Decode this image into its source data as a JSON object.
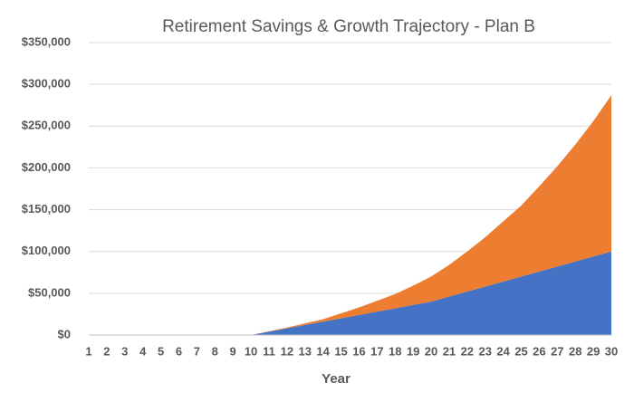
{
  "chart_data": {
    "type": "stacked-area",
    "title": "Retirement Savings & Growth Trajectory - Plan B",
    "x_label": "Year",
    "x": [
      1,
      2,
      3,
      4,
      5,
      6,
      7,
      8,
      9,
      10,
      11,
      12,
      13,
      14,
      15,
      16,
      17,
      18,
      19,
      20,
      21,
      22,
      23,
      24,
      25,
      26,
      27,
      28,
      29,
      30
    ],
    "xlim": [
      1,
      30
    ],
    "series": [
      {
        "color": "#4472c4",
        "values": [
          0,
          0,
          0,
          0,
          0,
          0,
          0,
          0,
          0,
          0,
          4000,
          8000,
          12000,
          16000,
          20000,
          24000,
          28000,
          32000,
          36000,
          40000,
          46000,
          52000,
          58000,
          64000,
          70000,
          76000,
          82000,
          88000,
          94000,
          100000
        ]
      },
      {
        "color": "#ed7d31",
        "values": [
          0,
          0,
          0,
          0,
          0,
          0,
          0,
          0,
          0,
          0,
          500,
          1000,
          2000,
          3000,
          6000,
          9000,
          13000,
          17000,
          23000,
          30000,
          38000,
          48000,
          59000,
          72000,
          85000,
          102000,
          120000,
          140000,
          162000,
          187000
        ]
      }
    ],
    "ylim": [
      0,
      350000
    ],
    "yticks": [
      {
        "value": 0,
        "label": "$0"
      },
      {
        "value": 50000,
        "label": "$50,000"
      },
      {
        "value": 100000,
        "label": "$100,000"
      },
      {
        "value": 150000,
        "label": "$150,000"
      },
      {
        "value": 200000,
        "label": "$200,000"
      },
      {
        "value": 250000,
        "label": "$250,000"
      },
      {
        "value": 300000,
        "label": "$300,000"
      },
      {
        "value": 350000,
        "label": "$350,000"
      }
    ],
    "grid": true
  }
}
